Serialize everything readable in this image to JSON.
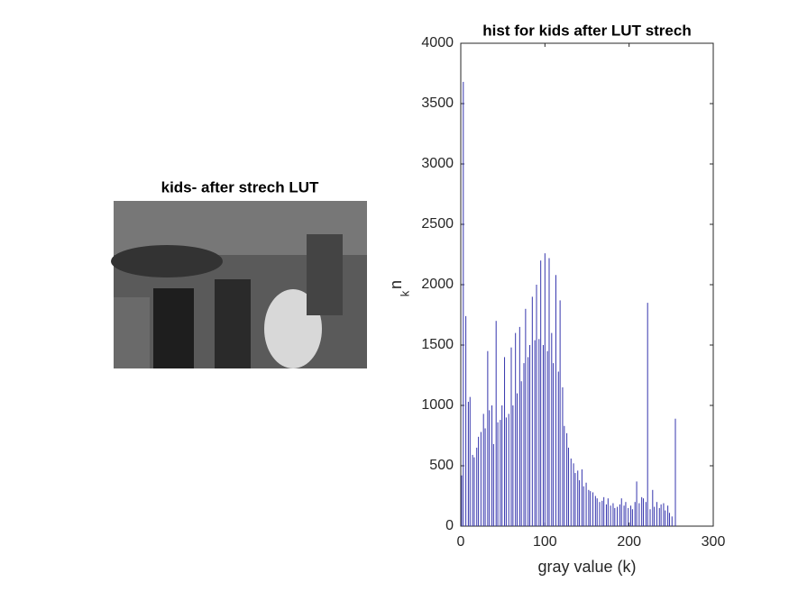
{
  "image_panel": {
    "title": "kids- after strech LUT"
  },
  "chart_data": {
    "type": "bar",
    "title": "hist for kids after LUT strech",
    "xlabel": "gray value (k)",
    "ylabel": "n",
    "ylabel_subscript": "k",
    "x": [
      1,
      3,
      6,
      9,
      11,
      14,
      16,
      19,
      21,
      24,
      27,
      29,
      32,
      34,
      37,
      39,
      42,
      44,
      47,
      49,
      52,
      54,
      57,
      60,
      62,
      65,
      67,
      70,
      72,
      75,
      77,
      80,
      82,
      85,
      88,
      90,
      93,
      95,
      98,
      100,
      103,
      105,
      108,
      110,
      113,
      116,
      118,
      121,
      123,
      126,
      128,
      131,
      134,
      136,
      139,
      141,
      144,
      146,
      149,
      152,
      154,
      157,
      160,
      162,
      165,
      168,
      170,
      173,
      175,
      178,
      181,
      183,
      186,
      189,
      191,
      194,
      196,
      199,
      202,
      204,
      207,
      209,
      212,
      215,
      217,
      220,
      222,
      225,
      228,
      230,
      233,
      236,
      238,
      241,
      243,
      246,
      248,
      251,
      255
    ],
    "values": [
      420,
      3680,
      1740,
      1030,
      1070,
      590,
      570,
      650,
      740,
      780,
      930,
      810,
      1450,
      960,
      1000,
      680,
      1700,
      860,
      880,
      1000,
      1400,
      900,
      930,
      1480,
      1000,
      1600,
      1100,
      1650,
      1200,
      1350,
      1800,
      1400,
      1500,
      1900,
      1540,
      2000,
      1550,
      2200,
      1500,
      2260,
      1450,
      2220,
      1600,
      1350,
      2080,
      1280,
      1870,
      1150,
      830,
      770,
      650,
      560,
      520,
      440,
      460,
      380,
      470,
      330,
      360,
      300,
      290,
      280,
      250,
      230,
      200,
      210,
      240,
      180,
      230,
      170,
      190,
      150,
      160,
      180,
      230,
      170,
      200,
      150,
      170,
      140,
      200,
      370,
      190,
      240,
      230,
      200,
      1850,
      140,
      300,
      160,
      200,
      150,
      180,
      190,
      130,
      170,
      110,
      80,
      890
    ],
    "color": "#3a3aaf",
    "xlim": [
      0,
      300
    ],
    "xticks": [
      0,
      100,
      200,
      300
    ],
    "ylim": [
      0,
      4000
    ],
    "yticks": [
      0,
      500,
      1000,
      1500,
      2000,
      2500,
      3000,
      3500,
      4000
    ]
  }
}
